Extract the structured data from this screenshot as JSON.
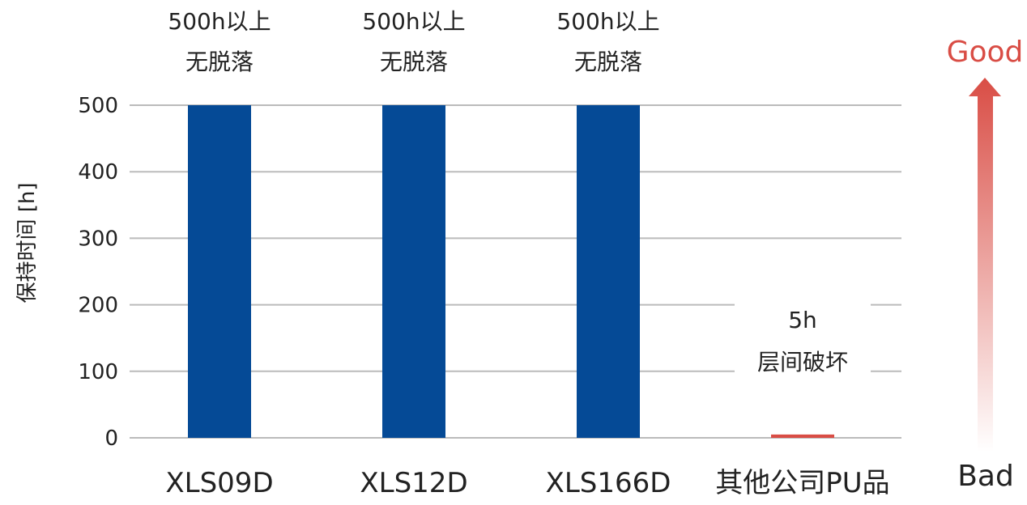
{
  "chart_data": {
    "type": "bar",
    "title": "",
    "xlabel": "",
    "ylabel": "保持时间 [h]",
    "ylim": [
      0,
      500
    ],
    "yticks": [
      0,
      100,
      200,
      300,
      400,
      500
    ],
    "grid": true,
    "categories": [
      "XLS09D",
      "XLS12D",
      "XLS166D",
      "其他公司PU品"
    ],
    "values": [
      500,
      500,
      500,
      5
    ],
    "bar_colors": [
      "#054a96",
      "#054a96",
      "#054a96",
      "#d94d45"
    ],
    "annotations": [
      {
        "line1": "500h以上",
        "line2": "无脱落"
      },
      {
        "line1": "500h以上",
        "line2": "无脱落"
      },
      {
        "line1": "500h以上",
        "line2": "无脱落"
      },
      {
        "line1": "5h",
        "line2": "层间破坏"
      }
    ],
    "indicator": {
      "top_label": "Good",
      "bottom_label": "Bad",
      "top_color": "#d94d45",
      "bottom_color": "#222222"
    }
  }
}
